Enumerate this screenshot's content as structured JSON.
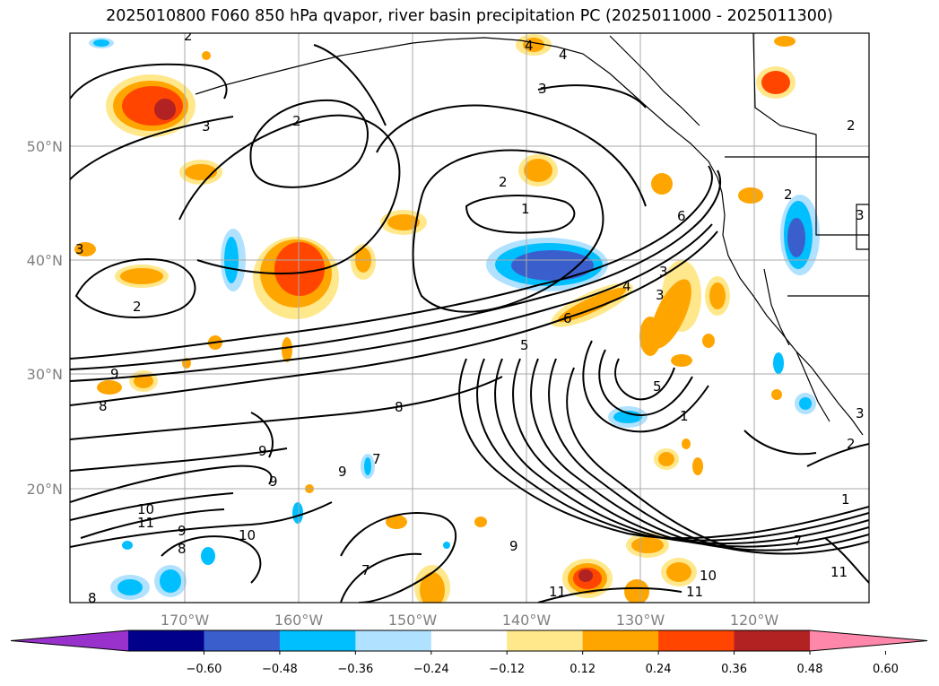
{
  "title": "2025010800 F060 850 hPa qvapor, river basin precipitation PC (2025011000 - 2025011300)",
  "lat_labels": [
    "50°N",
    "40°N",
    "30°N",
    "20°N"
  ],
  "lon_labels": [
    "170°W",
    "160°W",
    "150°W",
    "140°W",
    "130°W",
    "120°W"
  ],
  "colorbar": {
    "colors": [
      "#9932cc",
      "#00008b",
      "#3a5fcd",
      "#00bfff",
      "#b0e2ff",
      "#ffffff",
      "#ffe88c",
      "#ffa500",
      "#ff4500",
      "#b22222",
      "#ff88aa"
    ],
    "tick_labels": [
      "−0.60",
      "−0.48",
      "−0.36",
      "−0.24",
      "−0.12",
      "0.12",
      "0.24",
      "0.36",
      "0.48",
      "0.60"
    ]
  },
  "contour_labels": [
    "2",
    "4",
    "4",
    "3",
    "3",
    "2",
    "2",
    "2",
    "1",
    "6",
    "3",
    "5",
    "5",
    "6",
    "4",
    "3",
    "2",
    "9",
    "8",
    "9",
    "8",
    "9",
    "7",
    "9",
    "10",
    "11",
    "9",
    "8",
    "10",
    "7",
    "8",
    "9",
    "11",
    "11",
    "10",
    "7",
    "11",
    "1",
    "1",
    "3",
    "2",
    "2",
    "3",
    "3"
  ]
}
